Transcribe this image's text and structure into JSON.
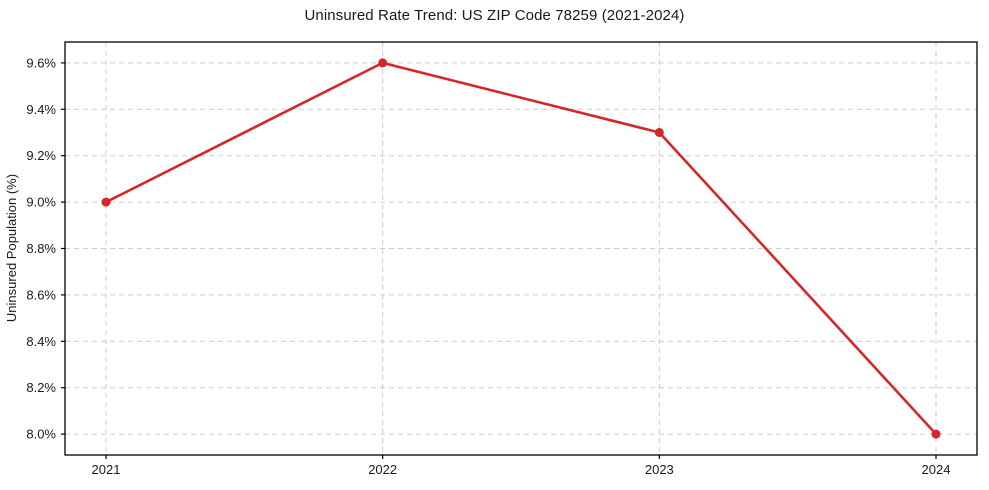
{
  "figure": {
    "background": "#ffffff",
    "text_color": "#1a1a1a",
    "spine_color": "#000000"
  },
  "chart_data": {
    "type": "line",
    "title": "Uninsured Rate Trend: US ZIP Code 78259 (2021-2024)",
    "xlabel": "",
    "ylabel": "Uninsured Population (%)",
    "categories": [
      "2021",
      "2022",
      "2023",
      "2024"
    ],
    "series": [
      {
        "name": "Uninsured Population (%)",
        "values": [
          9.0,
          9.6,
          9.3,
          8.0
        ],
        "color": "#d62728",
        "marker": "circle",
        "line_width": 2.6,
        "marker_radius": 4.5
      }
    ],
    "yticks": [
      8.0,
      8.2,
      8.4,
      8.6,
      8.8,
      9.0,
      9.2,
      9.4,
      9.6
    ],
    "ytick_suffix": "%",
    "ytick_decimals": 1,
    "ylim": [
      7.91,
      9.69
    ],
    "grid": true,
    "grid_color": "#cccccc",
    "grid_style": "dashed",
    "legend_position": "none"
  }
}
